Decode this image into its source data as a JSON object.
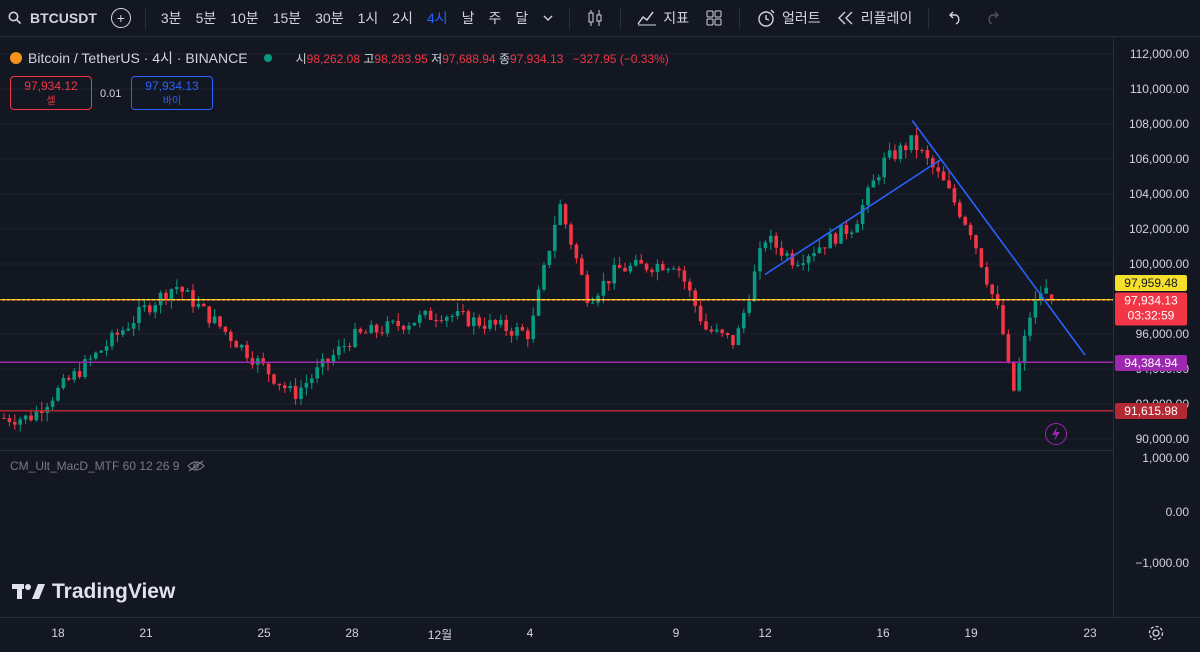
{
  "toolbar": {
    "symbol": "BTCUSDT",
    "timeframes": [
      "3분",
      "5분",
      "10분",
      "15분",
      "30분",
      "1시",
      "2시",
      "4시",
      "날",
      "주",
      "달"
    ],
    "active_timeframe": "4시",
    "indicators_label": "지표",
    "alert_label": "얼러트",
    "replay_label": "리플레이"
  },
  "legend": {
    "title": "Bitcoin / TetherUS · 4시 · BINANCE",
    "open_key": "시",
    "open": "98,262.08",
    "high_key": "고",
    "high": "98,283.95",
    "low_key": "저",
    "low": "97,688.94",
    "close_key": "종",
    "close": "97,934.13",
    "change": "−327.95 (−0.33%)"
  },
  "trade": {
    "sell_price": "97,934.12",
    "sell_label": "셀",
    "spread": "0.01",
    "buy_price": "97,934.13",
    "buy_label": "바이"
  },
  "indicator": {
    "label": "CM_Ult_MacD_MTF 60 12 26 9"
  },
  "price_scale": {
    "main_ticks": [
      "112,000.00",
      "110,000.00",
      "108,000.00",
      "106,000.00",
      "104,000.00",
      "102,000.00",
      "100,000.00",
      "96,000.00",
      "94,000.00",
      "92,000.00",
      "90,000.00"
    ],
    "macd_ticks": [
      "1,000.00",
      "0.00",
      "−1,000.00"
    ]
  },
  "labels": {
    "yellow_line": "97,959.48",
    "current_price": "97,934.13",
    "countdown": "03:32:59",
    "purple_line": "94,384.94",
    "red_line": "91,615.98"
  },
  "x_axis": [
    "18",
    "21",
    "25",
    "28",
    "12월",
    "4",
    "9",
    "12",
    "16",
    "19",
    "23"
  ],
  "branding": "TradingView",
  "colors": {
    "up": "#089981",
    "down": "#f23645",
    "accent": "#2962ff",
    "yellow": "#f5e12b",
    "purple": "#9c27b0",
    "red_line": "#b22833",
    "trend": "#2962ff"
  },
  "chart_data": {
    "type": "candlestick",
    "y_range": [
      89500,
      112500
    ],
    "horizontal_lines": [
      97959.48,
      94384.94,
      91615.98
    ],
    "trendlines": [
      {
        "from": [
          "Dec 12",
          99400
        ],
        "to": [
          "Dec 18",
          106000
        ]
      },
      {
        "from": [
          "Dec 17",
          108200
        ],
        "to": [
          "Dec 23",
          94800
        ]
      }
    ],
    "key_points": [
      {
        "x": "Nov 17",
        "close": 91200
      },
      {
        "x": "Nov 21",
        "close": 97500
      },
      {
        "x": "Nov 22",
        "close": 98800
      },
      {
        "x": "Nov 26",
        "close": 92500
      },
      {
        "x": "Nov 28",
        "close": 95800
      },
      {
        "x": "Dec 1",
        "close": 97200
      },
      {
        "x": "Dec 4",
        "close": 96000
      },
      {
        "x": "Dec 5",
        "close": 103500
      },
      {
        "x": "Dec 6",
        "close": 98000
      },
      {
        "x": "Dec 7",
        "close": 99700
      },
      {
        "x": "Dec 9",
        "close": 100100
      },
      {
        "x": "Dec 10",
        "close": 96300
      },
      {
        "x": "Dec 11",
        "close": 95500
      },
      {
        "x": "Dec 12",
        "close": 101500
      },
      {
        "x": "Dec 13",
        "close": 100200
      },
      {
        "x": "Dec 15",
        "close": 102200
      },
      {
        "x": "Dec 16",
        "close": 105800
      },
      {
        "x": "Dec 17",
        "close": 107000
      },
      {
        "x": "Dec 18",
        "close": 104800
      },
      {
        "x": "Dec 19",
        "close": 101900
      },
      {
        "x": "Dec 20",
        "close": 96800
      },
      {
        "x": "Dec 20",
        "close": 92500
      },
      {
        "x": "Dec 21",
        "close": 97200
      },
      {
        "x": "Dec 21",
        "close": 98600
      },
      {
        "x": "Dec 22",
        "close": 97934
      }
    ]
  }
}
